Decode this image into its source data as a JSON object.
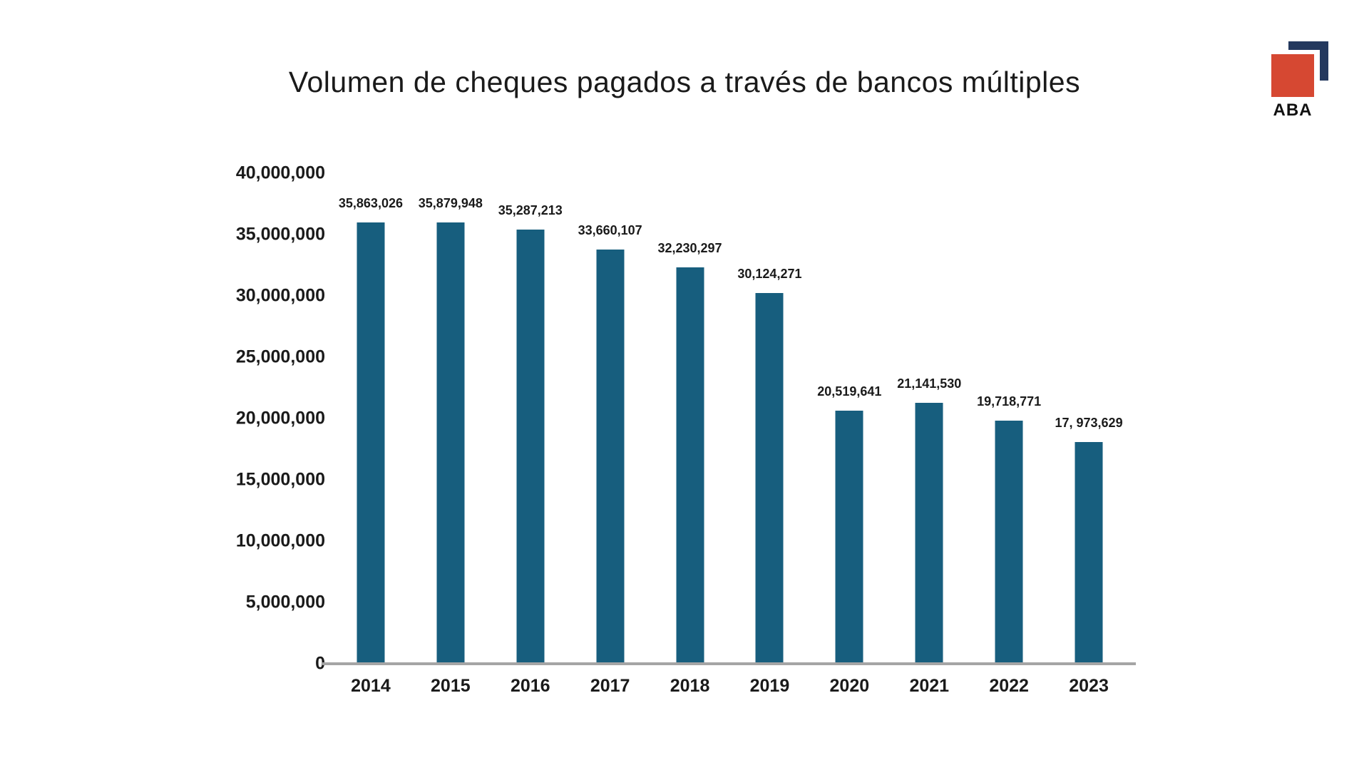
{
  "page": {
    "background": "#ffffff",
    "text_color": "#1a1a1a"
  },
  "header": {
    "title": "Volumen de cheques pagados a través de bancos múltiples"
  },
  "logo": {
    "label": "ABA",
    "red_square_color": "#d64832",
    "navy_bracket_color": "#24395e",
    "label_color": "#111111"
  },
  "chart_data": {
    "type": "bar",
    "title": "Volumen de cheques pagados a través de bancos múltiples",
    "categories": [
      "2014",
      "2015",
      "2016",
      "2017",
      "2018",
      "2019",
      "2020",
      "2021",
      "2022",
      "2023"
    ],
    "values": [
      35863026,
      35879948,
      35287213,
      33660107,
      32230297,
      30124271,
      20519641,
      21141530,
      19718771,
      17973629
    ],
    "bar_labels": [
      "35,863,026",
      "35,879,948",
      "35,287,213",
      "33,660,107",
      "32,230,297",
      "30,124,271",
      "20,519,641",
      "21,141,530",
      "19,718,771",
      "17, 973,629"
    ],
    "xlabel": "",
    "ylabel": "",
    "ylim": [
      0,
      40000000
    ],
    "ytick_values": [
      40000000,
      35000000,
      30000000,
      25000000,
      20000000,
      15000000,
      10000000,
      5000000,
      0
    ],
    "ytick_labels": [
      "40,000,000",
      "35,000,000",
      "30,000,000",
      "25,000,000",
      "20,000,000",
      "15,000,000",
      "10,000,000",
      "5,000,000",
      "0"
    ],
    "grid": false,
    "legend": false,
    "bar_color": "#175e7e",
    "axis_line_color": "#a5a5a5",
    "label_color": "#1a1a1a"
  }
}
